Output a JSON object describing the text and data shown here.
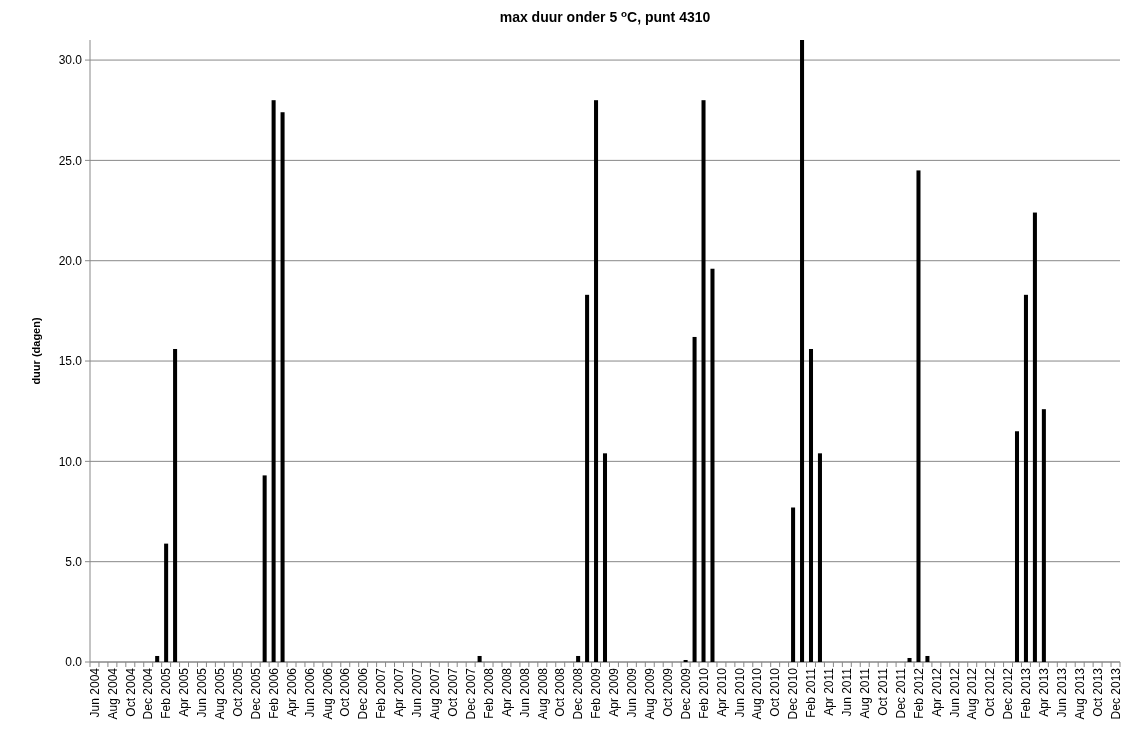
{
  "chart_data": {
    "type": "bar",
    "title": "max duur onder 5 $^{o}$C, punt 4310",
    "ylabel": "duur (dagen)",
    "categories": [
      "Jun 2004",
      null,
      "Aug 2004",
      null,
      "Oct 2004",
      null,
      "Dec 2004",
      null,
      "Feb 2005",
      null,
      "Apr 2005",
      null,
      "Jun 2005",
      null,
      "Aug 2005",
      null,
      "Oct 2005",
      null,
      "Dec 2005",
      null,
      "Feb 2006",
      null,
      "Apr 2006",
      null,
      "Jun 2006",
      null,
      "Aug 2006",
      null,
      "Oct 2006",
      null,
      "Dec 2006",
      null,
      "Feb 2007",
      null,
      "Apr 2007",
      null,
      "Jun 2007",
      null,
      "Aug 2007",
      null,
      "Oct 2007",
      null,
      "Dec 2007",
      null,
      "Feb 2008",
      null,
      "Apr 2008",
      null,
      "Jun 2008",
      null,
      "Aug 2008",
      null,
      "Oct 2008",
      null,
      "Dec 2008",
      null,
      "Feb 2009",
      null,
      "Apr 2009",
      null,
      "Jun 2009",
      null,
      "Aug 2009",
      null,
      "Oct 2009",
      null,
      "Dec 2009",
      null,
      "Feb 2010",
      null,
      "Apr 2010",
      null,
      "Jun 2010",
      null,
      "Aug 2010",
      null,
      "Oct 2010",
      null,
      "Dec 2010",
      null,
      "Feb 2011",
      null,
      "Apr 2011",
      null,
      "Jun 2011",
      null,
      "Aug 2011",
      null,
      "Oct 2011",
      null,
      "Dec 2011",
      null,
      "Feb 2012",
      null,
      "Apr 2012",
      null,
      "Jun 2012",
      null,
      "Aug 2012",
      null,
      "Oct 2012",
      null,
      "Dec 2012",
      null,
      "Feb 2013",
      null,
      "Apr 2013",
      null,
      "Jun 2013",
      null,
      "Aug 2013",
      null,
      "Oct 2013",
      null,
      "Dec 2013"
    ],
    "values": [
      0,
      0,
      0,
      0,
      0,
      0,
      0,
      0.3,
      5.9,
      15.6,
      0,
      0,
      0,
      0,
      0,
      0,
      0,
      0,
      0,
      9.3,
      28.0,
      27.4,
      0,
      0,
      0,
      0,
      0,
      0,
      0,
      0,
      0,
      0,
      0,
      0,
      0,
      0,
      0,
      0,
      0,
      0,
      0,
      0,
      0,
      0.3,
      0,
      0,
      0,
      0,
      0,
      0,
      0,
      0,
      0,
      0,
      0.3,
      18.3,
      28.0,
      10.4,
      0,
      0,
      0,
      0,
      0,
      0,
      0,
      0,
      0.1,
      16.2,
      28.0,
      19.6,
      0,
      0,
      0,
      0,
      0,
      0,
      0,
      0,
      7.7,
      31.0,
      15.6,
      10.4,
      0,
      0,
      0,
      0,
      0,
      0,
      0,
      0,
      0,
      0.2,
      24.5,
      0.3,
      0,
      0,
      0,
      0,
      0,
      0,
      0,
      0,
      0,
      11.5,
      18.3,
      22.4,
      12.6,
      0,
      0,
      0,
      0,
      0,
      0,
      0,
      0
    ],
    "color": "#000000",
    "ylim": [
      0,
      31
    ],
    "yticks": [
      {
        "value": 0,
        "label": "0.0"
      },
      {
        "value": 5,
        "label": "5.0"
      },
      {
        "value": 10,
        "label": "10.0"
      },
      {
        "value": 15,
        "label": "15.0"
      },
      {
        "value": 20,
        "label": "20.0"
      },
      {
        "value": 25,
        "label": "25.0"
      },
      {
        "value": 30,
        "label": "30.0"
      }
    ],
    "grid": "y"
  }
}
